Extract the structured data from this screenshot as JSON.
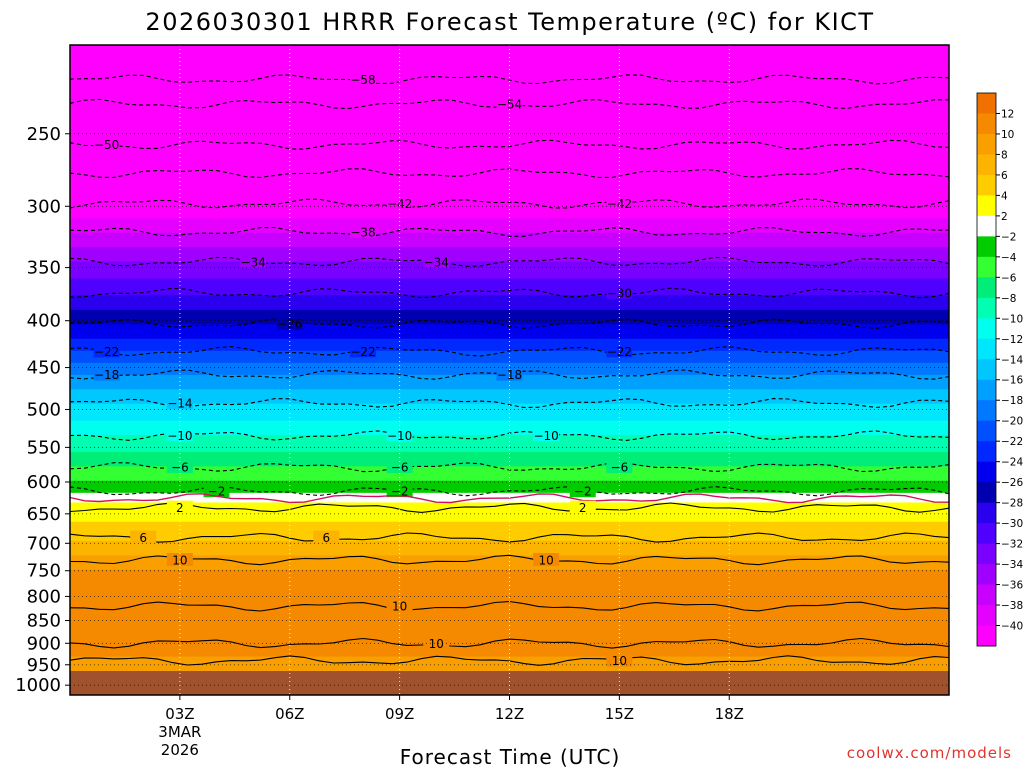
{
  "chart_data": {
    "type": "heatmap",
    "title": "2026030301 HRRR Forecast Temperature (ºC) for KICT",
    "xlabel": "Forecast Time (UTC)",
    "ylabel": "",
    "credit": "coolwx.com/models",
    "x_range_hours": [
      -3,
      21
    ],
    "y_range_hpa": [
      1025,
      200
    ],
    "y_scale": "log-pressure",
    "y_ticks": [
      250,
      300,
      350,
      400,
      450,
      500,
      550,
      600,
      650,
      700,
      750,
      800,
      850,
      900,
      950,
      1000
    ],
    "x_ticks": [
      {
        "hour": 0,
        "label": "03Z",
        "label2": "3MAR",
        "label3": "2026"
      },
      {
        "hour": 3,
        "label": "06Z"
      },
      {
        "hour": 6,
        "label": "09Z"
      },
      {
        "hour": 9,
        "label": "12Z"
      },
      {
        "hour": 12,
        "label": "15Z"
      },
      {
        "hour": 15,
        "label": "18Z"
      }
    ],
    "ground_level_hpa": 965,
    "colorbar": {
      "bins": [
        {
          "lo": 12,
          "hi": 14,
          "color": "#f07000"
        },
        {
          "lo": 10,
          "hi": 12,
          "color": "#f58a00"
        },
        {
          "lo": 8,
          "hi": 10,
          "color": "#f9a000"
        },
        {
          "lo": 6,
          "hi": 8,
          "color": "#fcb400"
        },
        {
          "lo": 4,
          "hi": 6,
          "color": "#ffcc00"
        },
        {
          "lo": 2,
          "hi": 4,
          "color": "#ffff00"
        },
        {
          "lo": -2,
          "hi": 2,
          "color": "#ffffff"
        },
        {
          "lo": -4,
          "hi": -2,
          "color": "#00cc00"
        },
        {
          "lo": -6,
          "hi": -4,
          "color": "#33ff33"
        },
        {
          "lo": -8,
          "hi": -6,
          "color": "#00ee77"
        },
        {
          "lo": -10,
          "hi": -8,
          "color": "#00ffb0"
        },
        {
          "lo": -12,
          "hi": -10,
          "color": "#00ffee"
        },
        {
          "lo": -14,
          "hi": -12,
          "color": "#00e6ff"
        },
        {
          "lo": -16,
          "hi": -14,
          "color": "#00c8ff"
        },
        {
          "lo": -18,
          "hi": -16,
          "color": "#00a0ff"
        },
        {
          "lo": -20,
          "hi": -18,
          "color": "#0078ff"
        },
        {
          "lo": -22,
          "hi": -20,
          "color": "#0050ff"
        },
        {
          "lo": -24,
          "hi": -22,
          "color": "#0028ff"
        },
        {
          "lo": -26,
          "hi": -24,
          "color": "#0000ee"
        },
        {
          "lo": -28,
          "hi": -26,
          "color": "#0000b0"
        },
        {
          "lo": -30,
          "hi": -28,
          "color": "#2a00ee"
        },
        {
          "lo": -32,
          "hi": -30,
          "color": "#5000ff"
        },
        {
          "lo": -34,
          "hi": -32,
          "color": "#7a00ff"
        },
        {
          "lo": -36,
          "hi": -34,
          "color": "#a000ff"
        },
        {
          "lo": -38,
          "hi": -36,
          "color": "#c800ff"
        },
        {
          "lo": -40,
          "hi": -38,
          "color": "#e600ff"
        },
        {
          "lo": -60,
          "hi": -40,
          "color": "#ff00ff"
        }
      ],
      "tick_labels": [
        "12",
        "10",
        "8",
        "6",
        "4",
        "2",
        "-2",
        "-4",
        "-6",
        "-8",
        "-10",
        "-12",
        "-14",
        "-16",
        "-18",
        "-20",
        "-22",
        "-24",
        "-26",
        "-28",
        "-30",
        "-32",
        "-34",
        "-36",
        "-38",
        "-40"
      ]
    },
    "temperature_profile": [
      {
        "p": 200,
        "t": -60
      },
      {
        "p": 218,
        "t": -58
      },
      {
        "p": 232,
        "t": -54
      },
      {
        "p": 255,
        "t": -50
      },
      {
        "p": 298,
        "t": -42
      },
      {
        "p": 320,
        "t": -38
      },
      {
        "p": 345,
        "t": -34
      },
      {
        "p": 375,
        "t": -30
      },
      {
        "p": 403,
        "t": -26
      },
      {
        "p": 432,
        "t": -22
      },
      {
        "p": 458,
        "t": -18
      },
      {
        "p": 492,
        "t": -14
      },
      {
        "p": 534,
        "t": -10
      },
      {
        "p": 578,
        "t": -6
      },
      {
        "p": 615,
        "t": -2
      },
      {
        "p": 622,
        "t": 0
      },
      {
        "p": 630,
        "t": 2
      },
      {
        "p": 662,
        "t": 4
      },
      {
        "p": 695,
        "t": 6
      },
      {
        "p": 722,
        "t": 8
      },
      {
        "p": 750,
        "t": 10
      },
      {
        "p": 790,
        "t": 11
      },
      {
        "p": 880,
        "t": 11
      },
      {
        "p": 930,
        "t": 10
      },
      {
        "p": 965,
        "t": 8
      }
    ],
    "contours": [
      {
        "level": -58,
        "p": 218,
        "dashed": true,
        "label_hour": 5.0
      },
      {
        "level": -54,
        "p": 232,
        "dashed": true,
        "label_hour": 9.0
      },
      {
        "level": -50,
        "p": 257,
        "dashed": true,
        "label_hour": -2.0
      },
      {
        "level": -46,
        "p": 276,
        "dashed": true,
        "label_hour": null
      },
      {
        "level": -42,
        "p": 298,
        "dashed": true,
        "label_hour": 6.0
      },
      {
        "level": -42,
        "p": 298,
        "dashed": true,
        "label_hour": 12.0
      },
      {
        "level": -38,
        "p": 320,
        "dashed": true,
        "label_hour": 5.0
      },
      {
        "level": -34,
        "p": 345,
        "dashed": true,
        "label_hour": 2.0
      },
      {
        "level": -34,
        "p": 345,
        "dashed": true,
        "label_hour": 7.0
      },
      {
        "level": -30,
        "p": 373,
        "dashed": true,
        "label_hour": 12.0
      },
      {
        "level": -26,
        "p": 403,
        "dashed": true,
        "label_hour": 3.0
      },
      {
        "level": -22,
        "p": 432,
        "dashed": true,
        "label_hour": -2.0
      },
      {
        "level": -22,
        "p": 432,
        "dashed": true,
        "label_hour": 5.0
      },
      {
        "level": -22,
        "p": 432,
        "dashed": true,
        "label_hour": 12.0
      },
      {
        "level": -18,
        "p": 458,
        "dashed": true,
        "label_hour": -2.0
      },
      {
        "level": -18,
        "p": 458,
        "dashed": true,
        "label_hour": 9.0
      },
      {
        "level": -14,
        "p": 492,
        "dashed": true,
        "label_hour": 0.0
      },
      {
        "level": -10,
        "p": 534,
        "dashed": true,
        "label_hour": 0.0
      },
      {
        "level": -10,
        "p": 534,
        "dashed": true,
        "label_hour": 6.0
      },
      {
        "level": -10,
        "p": 534,
        "dashed": true,
        "label_hour": 10.0
      },
      {
        "level": -6,
        "p": 578,
        "dashed": true,
        "label_hour": 0.0
      },
      {
        "level": -6,
        "p": 578,
        "dashed": true,
        "label_hour": 6.0
      },
      {
        "level": -6,
        "p": 578,
        "dashed": true,
        "label_hour": 12.0
      },
      {
        "level": -2,
        "p": 614,
        "dashed": true,
        "label_hour": 1.0
      },
      {
        "level": -2,
        "p": 614,
        "dashed": true,
        "label_hour": 6.0
      },
      {
        "level": -2,
        "p": 614,
        "dashed": true,
        "label_hour": 11.0
      },
      {
        "level": 0,
        "p": 625,
        "dashed": false,
        "label_hour": null
      },
      {
        "level": 2,
        "p": 640,
        "dashed": false,
        "label_hour": 0.0
      },
      {
        "level": 2,
        "p": 640,
        "dashed": false,
        "label_hour": 11.0
      },
      {
        "level": 6,
        "p": 690,
        "dashed": false,
        "label_hour": -1.0
      },
      {
        "level": 6,
        "p": 690,
        "dashed": false,
        "label_hour": 4.0
      },
      {
        "level": 10,
        "p": 730,
        "dashed": false,
        "label_hour": 0.0
      },
      {
        "level": 10,
        "p": 730,
        "dashed": false,
        "label_hour": 10.0
      },
      {
        "level": 10,
        "p": 820,
        "dashed": false,
        "label_hour": 6.0
      },
      {
        "level": 10,
        "p": 900,
        "dashed": false,
        "label_hour": 7.0
      },
      {
        "level": 10,
        "p": 940,
        "dashed": false,
        "label_hour": 12.0
      }
    ]
  }
}
